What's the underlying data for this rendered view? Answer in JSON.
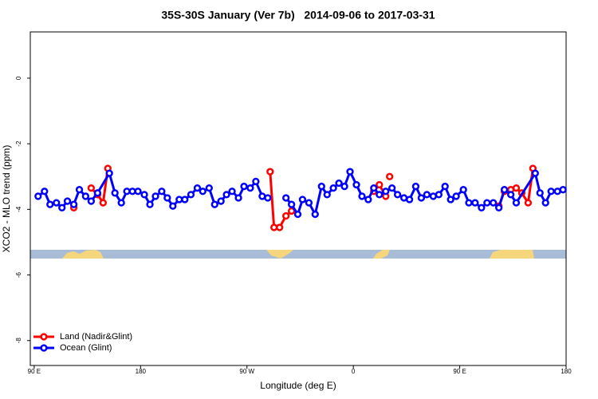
{
  "chart_data": {
    "type": "line",
    "title": "35S-30S January (Ver 7b)   2014-09-06 to 2017-03-31",
    "x_label": "Longitude (deg E)",
    "y_label": "XCO2 - MLO trend (ppm)",
    "xlim": [
      86.7,
      540
    ],
    "ylim": [
      -8.76,
      1.41
    ],
    "xticks": [
      {
        "value": 90,
        "label": "90 E"
      },
      180,
      {
        "value": 270,
        "label": "90 W"
      },
      {
        "value": 360,
        "label": "0"
      },
      {
        "value": 450,
        "label": "90 E"
      },
      {
        "value": 540,
        "label": "180"
      }
    ],
    "yticks": [
      0,
      -2,
      -4,
      -6,
      -8
    ],
    "legend": "bottom-left",
    "series": [
      {
        "name": "Land (Nadir&Glint)",
        "color": "#ff0000",
        "x": [
          123.5,
          130,
          138.2,
          143.6,
          148.3,
          152.3,
          250,
          289.6,
          292.9,
          297.6,
          303.0,
          307.7,
          320,
          377.3,
          382.0,
          387.4,
          389,
          390.7,
          450,
          483.1,
          487.8,
          493.2,
          497.8,
          502.5,
          507.9,
          511.9
        ],
        "values": [
          -3.95,
          null,
          -3.35,
          -3.55,
          -3.8,
          -2.75,
          null,
          -2.85,
          -4.55,
          -4.55,
          -4.2,
          -4.05,
          null,
          -3.45,
          -3.25,
          -3.6,
          null,
          -3.0,
          null,
          -3.9,
          -3.45,
          -3.4,
          -3.35,
          -3.5,
          -3.8,
          -2.75
        ]
      },
      {
        "name": "Ocean (Glint)",
        "color": "#0000ff",
        "x": [
          93.3,
          98.7,
          103.4,
          108.8,
          113.5,
          118.1,
          123.5,
          128.2,
          133.5,
          138.2,
          143.6,
          153.6,
          158.3,
          163.7,
          168.4,
          173.1,
          177.8,
          183.2,
          187.9,
          192.6,
          197.9,
          202.6,
          207.3,
          212.7,
          217.4,
          222.6,
          228.0,
          232.6,
          238.0,
          242.7,
          248.0,
          252.7,
          257.4,
          262.8,
          267.5,
          272.8,
          277.5,
          282.9,
          287.6,
          295,
          303.0,
          307.7,
          313.0,
          317.0,
          322.4,
          327.7,
          333.1,
          337.8,
          343.1,
          347.8,
          352.5,
          357.2,
          362.6,
          367.3,
          372.6,
          377.3,
          382.0,
          387.4,
          392.7,
          397.4,
          402.8,
          407.5,
          412.8,
          417.5,
          422.2,
          427.6,
          432.3,
          437.6,
          442.3,
          447.0,
          453.1,
          457.7,
          463.0,
          468.4,
          473.1,
          478.4,
          483.1,
          487.8,
          493.2,
          497.8,
          513.9,
          517.9,
          522.6,
          527.3,
          532.7,
          537.4
        ],
        "values": [
          -3.6,
          -3.45,
          -3.85,
          -3.8,
          -3.95,
          -3.75,
          -3.85,
          -3.4,
          -3.6,
          -3.75,
          -3.5,
          -2.9,
          -3.5,
          -3.8,
          -3.45,
          -3.45,
          -3.45,
          -3.55,
          -3.85,
          -3.6,
          -3.45,
          -3.65,
          -3.9,
          -3.7,
          -3.7,
          -3.55,
          -3.35,
          -3.45,
          -3.35,
          -3.85,
          -3.75,
          -3.55,
          -3.45,
          -3.65,
          -3.3,
          -3.35,
          -3.15,
          -3.6,
          -3.65,
          null,
          -3.65,
          -3.85,
          -4.15,
          -3.7,
          -3.8,
          -4.15,
          -3.3,
          -3.55,
          -3.35,
          -3.2,
          -3.3,
          -2.85,
          -3.25,
          -3.6,
          -3.7,
          -3.35,
          -3.55,
          -3.45,
          -3.35,
          -3.55,
          -3.65,
          -3.7,
          -3.3,
          -3.65,
          -3.55,
          -3.6,
          -3.55,
          -3.3,
          -3.7,
          -3.6,
          -3.4,
          -3.8,
          -3.8,
          -3.95,
          -3.8,
          -3.8,
          -3.95,
          -3.4,
          -3.55,
          -3.8,
          -2.9,
          -3.5,
          -3.8,
          -3.45,
          -3.45,
          -3.4
        ]
      }
    ]
  }
}
